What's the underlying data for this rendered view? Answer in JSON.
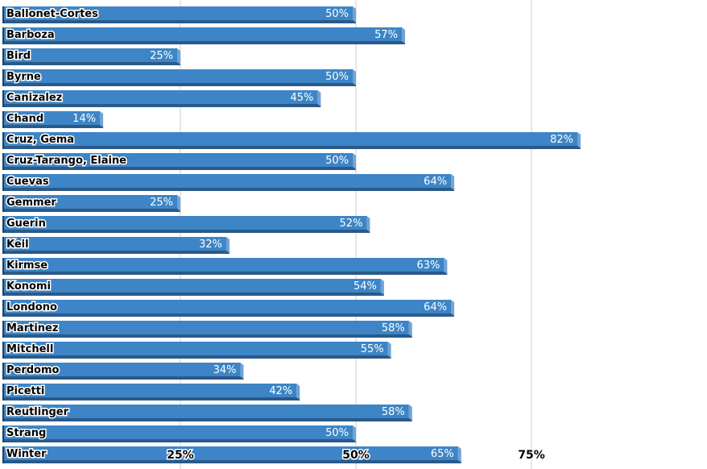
{
  "chart_data": {
    "type": "bar",
    "orientation": "horizontal",
    "categories": [
      "Ballonet-Cortes",
      "Barboza",
      "Bird",
      "Byrne",
      "Canizalez",
      "Chand",
      "Cruz, Gema",
      "Cruz-Tarango, Elaine",
      "Cuevas",
      "Gemmer",
      "Guerin",
      "Keil",
      "Kirmse",
      "Konomi",
      "Londono",
      "Martinez",
      "Mitchell",
      "Perdomo",
      "Picetti",
      "Reutlinger",
      "Strang",
      "Winter"
    ],
    "values": [
      50,
      57,
      25,
      50,
      45,
      14,
      82,
      50,
      64,
      25,
      52,
      32,
      63,
      54,
      64,
      58,
      55,
      34,
      42,
      58,
      50,
      65
    ],
    "value_labels": [
      "50%",
      "57%",
      "25%",
      "50%",
      "45%",
      "14%",
      "82%",
      "50%",
      "64%",
      "25%",
      "52%",
      "32%",
      "63%",
      "54%",
      "64%",
      "58%",
      "55%",
      "34%",
      "42%",
      "58%",
      "50%",
      "65%"
    ],
    "xlim": [
      0,
      100
    ],
    "x_ticks": [
      25,
      50,
      75
    ],
    "x_tick_labels": [
      "25%",
      "50%",
      "75%"
    ],
    "grid": "vertical",
    "colors": {
      "bar": "#3d85c6",
      "bar_shadow": "#2a5a8a",
      "bar_side": "#6fa3d8",
      "grid": "#cccccc"
    }
  }
}
